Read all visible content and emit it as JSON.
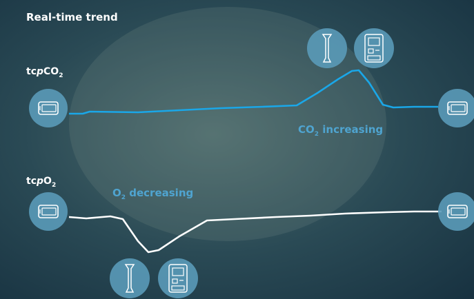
{
  "header": {
    "title": "Real-time trend"
  },
  "labels": [
    {
      "parts": [
        "tc",
        "p",
        "CO",
        "2"
      ]
    },
    {
      "parts": [
        "tc",
        "p",
        "O",
        "2"
      ]
    }
  ],
  "annotations": [
    {
      "parts": [
        "CO",
        "2",
        " increasing"
      ]
    },
    {
      "parts": [
        "O",
        "2",
        " decreasing"
      ]
    }
  ]
}
